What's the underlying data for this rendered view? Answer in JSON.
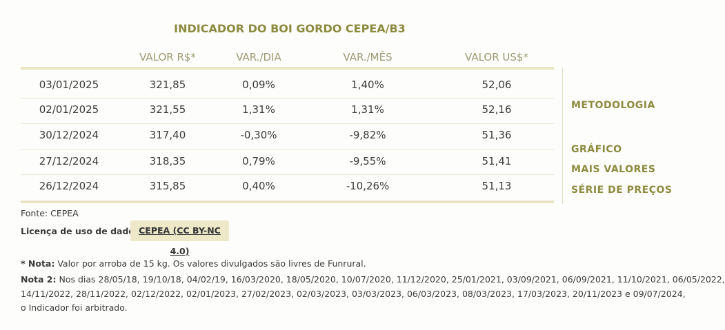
{
  "title": "INDICADOR DO BOI GORDO CEPEA/B3",
  "table": {
    "headers": [
      "VALOR R$*",
      "VAR./DIA",
      "VAR./MÊS",
      "VALOR US$*"
    ],
    "rows": [
      [
        "03/01/2025",
        "321,85",
        "0,09%",
        "1,40%",
        "52,06"
      ],
      [
        "02/01/2025",
        "321,55",
        "1,31%",
        "1,31%",
        "52,16"
      ],
      [
        "30/12/2024",
        "317,40",
        "-0,30%",
        "-9,82%",
        "51,36"
      ],
      [
        "27/12/2024",
        "318,35",
        "0,79%",
        "-9,55%",
        "51,41"
      ],
      [
        "26/12/2024",
        "315,85",
        "0,40%",
        "-10,26%",
        "51,13"
      ]
    ]
  },
  "links": [
    "METODOLOGIA",
    "GRÁFICO",
    "MAIS VALORES",
    "SÉRIE DE PREÇOS"
  ],
  "source": "Fonte: CEPEA",
  "license": {
    "label": "Licença de uso de dados:",
    "button": "CEPEA (CC BY-NC 4.0)"
  },
  "notes": {
    "nota_label": "* Nota:",
    "nota_text": "Valor por arroba de 15 kg. Os valores divulgados são livres de Funrural.",
    "nota2_label": "Nota 2:",
    "nota2_lines": [
      "Nos dias 28/05/18, 19/10/18, 04/02/19, 16/03/2020, 18/05/2020, 10/07/2020, 11/12/2020, 25/01/2021, 03/09/2021, 06/09/2021, 11/10/2021, 06/05/2022,",
      "14/11/2022, 28/11/2022, 02/12/2022, 02/01/2023, 27/02/2023, 02/03/2023, 03/03/2023, 06/03/2023, 08/03/2023, 17/03/2023, 20/11/2023 e 09/07/2024,",
      "o Indicador foi arbitrado."
    ]
  }
}
